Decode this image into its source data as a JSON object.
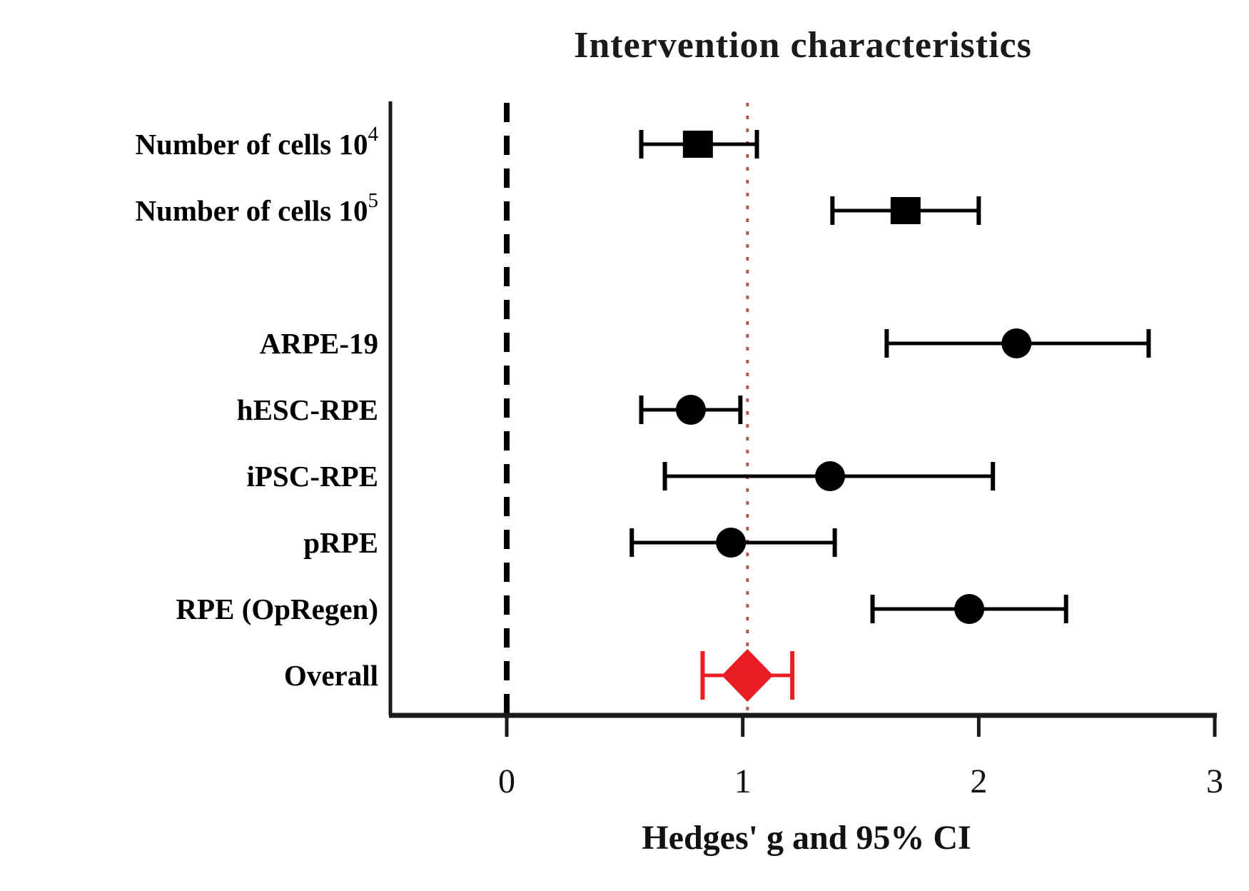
{
  "page": {
    "background": "#ffffff"
  },
  "chart_data": {
    "type": "forest",
    "title": "Intervention characteristics",
    "xlabel": "Hedges' g and 95% CI",
    "x_ticks": [
      "0",
      "1",
      "2",
      "3"
    ],
    "x_tick_values": [
      0,
      1,
      2,
      3
    ],
    "xlim": [
      -0.49,
      3
    ],
    "grid": false,
    "legend": "none",
    "colors": {
      "black_marker": "#000000",
      "overall_red": "#ec1c24",
      "reference_dotted_red": "#b05a52",
      "axis": "#1a1a1a"
    },
    "reference_lines": [
      {
        "value": 0,
        "style": "dashed",
        "color": "#000000"
      },
      {
        "value": 1.02,
        "style": "dotted",
        "color": "#b05a52"
      }
    ],
    "rows": [
      {
        "label": "Number of cells 10",
        "label_sup": "4",
        "marker": "square",
        "row_index": 0,
        "g": 0.81,
        "ci_low": 0.57,
        "ci_high": 1.06,
        "color": "#000000"
      },
      {
        "label": "Number of cells 10",
        "label_sup": "5",
        "marker": "square",
        "row_index": 1,
        "g": 1.69,
        "ci_low": 1.38,
        "ci_high": 2.0,
        "color": "#000000"
      },
      {
        "label": "ARPE-19",
        "marker": "circle",
        "row_index": 3,
        "g": 2.16,
        "ci_low": 1.61,
        "ci_high": 2.72,
        "color": "#000000"
      },
      {
        "label": "hESC-RPE",
        "marker": "circle",
        "row_index": 4,
        "g": 0.78,
        "ci_low": 0.57,
        "ci_high": 0.99,
        "color": "#000000"
      },
      {
        "label": "iPSC-RPE",
        "marker": "circle",
        "row_index": 5,
        "g": 1.37,
        "ci_low": 0.67,
        "ci_high": 2.06,
        "color": "#000000"
      },
      {
        "label": "pRPE",
        "marker": "circle",
        "row_index": 6,
        "g": 0.95,
        "ci_low": 0.53,
        "ci_high": 1.39,
        "color": "#000000"
      },
      {
        "label": "RPE (OpRegen)",
        "marker": "circle",
        "row_index": 7,
        "g": 1.96,
        "ci_low": 1.55,
        "ci_high": 2.37,
        "color": "#000000"
      },
      {
        "label": "Overall",
        "marker": "diamond",
        "row_index": 8,
        "g": 1.02,
        "ci_low": 0.83,
        "ci_high": 1.21,
        "color": "#ec1c24"
      }
    ]
  }
}
